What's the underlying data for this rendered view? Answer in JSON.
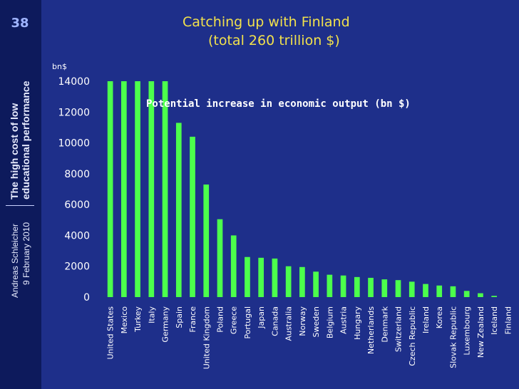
{
  "slide": {
    "number": "38",
    "side_title_line1": "The high cost of low",
    "side_title_line2": "educational performance",
    "author": "Andreas Schleicher",
    "date": "9 February 2010"
  },
  "colors": {
    "background": "#1e2f8a",
    "sidebar": "#0d1a5c",
    "title": "#f2e14c",
    "bar": "#4cff4c",
    "text": "#ffffff"
  },
  "chart_data": {
    "type": "bar",
    "title_line1": "Catching up with Finland",
    "title_line2": "(total 260 trillion $)",
    "annotation": "Potential increase in economic output (bn $)",
    "ylabel": "bn$",
    "xlabel": "",
    "ylim": [
      0,
      14000
    ],
    "yticks": [
      0,
      2000,
      4000,
      6000,
      8000,
      10000,
      12000,
      14000
    ],
    "grid": false,
    "categories": [
      "United States",
      "Mexico",
      "Turkey",
      "Italy",
      "Germany",
      "Spain",
      "France",
      "United Kingdom",
      "Poland",
      "Greece",
      "Portugal",
      "Japan",
      "Canada",
      "Australia",
      "Norway",
      "Sweden",
      "Belgium",
      "Austria",
      "Hungary",
      "Netherlands",
      "Denmark",
      "Switzerland",
      "Czech Republic",
      "Ireland",
      "Korea",
      "Slovak Republic",
      "Luxembourg",
      "New Zealand",
      "Iceland",
      "Finland"
    ],
    "values": [
      14000,
      14000,
      14000,
      14000,
      14000,
      11300,
      10400,
      7300,
      5050,
      4000,
      2600,
      2550,
      2500,
      2000,
      1950,
      1650,
      1450,
      1400,
      1300,
      1250,
      1150,
      1100,
      1000,
      850,
      750,
      700,
      400,
      250,
      80,
      0
    ]
  }
}
